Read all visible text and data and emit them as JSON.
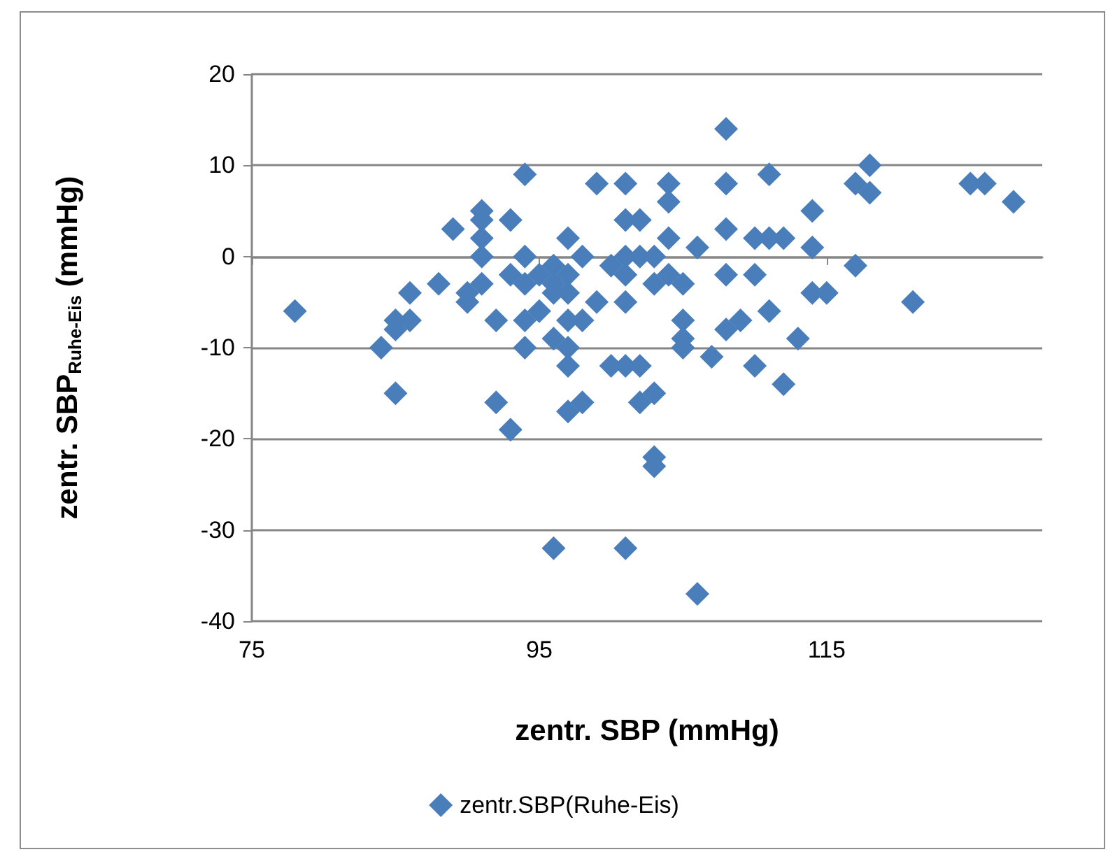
{
  "chart_data": {
    "type": "scatter",
    "xlabel": "zentr. SBP (mmHg)",
    "ylabel": "zentr. SBP$_{Ruhe-Eis}$ (mmHg)",
    "xlim": [
      75,
      130
    ],
    "xticks": [
      75,
      95,
      115
    ],
    "ylim": [
      -40,
      20
    ],
    "yticks": [
      -40,
      -30,
      -20,
      -10,
      0,
      10,
      20
    ],
    "grid": "y",
    "legend": "bottom",
    "marker": "diamond",
    "series": [
      {
        "name": "zentr.SBP(Ruhe-Eis)",
        "color": "#4a7ebb",
        "x": [
          78,
          84,
          85,
          85,
          85,
          86,
          86,
          88,
          89,
          90,
          90,
          91,
          91,
          91,
          91,
          91,
          92,
          92,
          93,
          93,
          93,
          94,
          94,
          94,
          94,
          94,
          95,
          95,
          96,
          96,
          96,
          96,
          96,
          97,
          97,
          97,
          97,
          97,
          97,
          97,
          98,
          98,
          98,
          99,
          99,
          100,
          100,
          101,
          101,
          101,
          101,
          101,
          101,
          101,
          102,
          102,
          102,
          102,
          103,
          103,
          103,
          103,
          103,
          104,
          104,
          104,
          104,
          105,
          105,
          105,
          105,
          106,
          106,
          107,
          108,
          108,
          108,
          108,
          108,
          109,
          110,
          110,
          110,
          111,
          111,
          111,
          112,
          112,
          113,
          114,
          114,
          114,
          115,
          117,
          117,
          118,
          118,
          121,
          125,
          126,
          128
        ],
        "values": [
          -6,
          -10,
          -15,
          -7,
          -8,
          -7,
          -4,
          -3,
          3,
          -4,
          -5,
          5,
          4,
          2,
          0,
          -3,
          -7,
          -16,
          4,
          -2,
          -19,
          9,
          0,
          -3,
          -7,
          -10,
          -6,
          -2,
          -1,
          -4,
          -3,
          -9,
          -32,
          2,
          -2,
          -4,
          -7,
          -10,
          -12,
          -17,
          0,
          -7,
          -16,
          8,
          -5,
          -1,
          -12,
          8,
          4,
          0,
          -2,
          -5,
          -12,
          -32,
          4,
          0,
          -12,
          -16,
          0,
          -3,
          -15,
          -22,
          -23,
          8,
          6,
          2,
          -2,
          -3,
          -7,
          -9,
          -10,
          1,
          -37,
          -11,
          14,
          8,
          3,
          -2,
          -8,
          -7,
          2,
          -2,
          -12,
          9,
          2,
          -6,
          2,
          -14,
          -9,
          5,
          1,
          -4,
          -4,
          8,
          -1,
          10,
          7,
          -5,
          8,
          8,
          6
        ]
      }
    ]
  }
}
